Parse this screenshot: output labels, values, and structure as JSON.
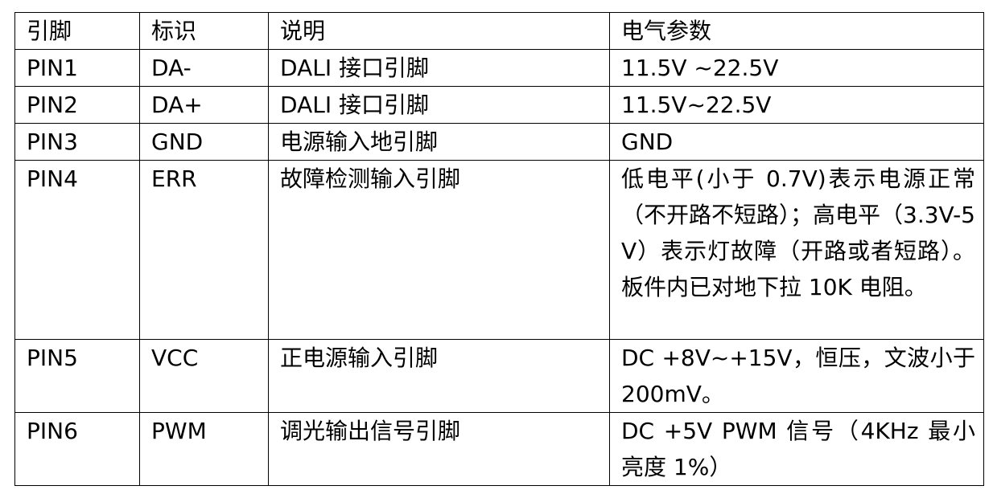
{
  "table": {
    "header": [
      "引脚",
      "标识",
      "说明",
      "电气参数"
    ],
    "rows": [
      [
        "PIN1",
        "DA-",
        "DALI 接口引脚",
        "11.5V ~22.5V"
      ],
      [
        "PIN2",
        "DA+",
        "DALI 接口引脚",
        "11.5V~22.5V"
      ],
      [
        "PIN3",
        "GND",
        "电源输入地引脚",
        "GND"
      ],
      [
        "PIN4",
        "ERR",
        "故障检测输入引脚",
        "低电平(小于 0.7V)表示电源正常（不开路不短路）；高电平（3.3V-5V）表示灯故障（开路或者短路）。板件内已对地下拉 10K 电阻。"
      ],
      [
        "PIN5",
        "VCC",
        "正电源输入引脚",
        "DC +8V~+15V，恒压，文波小于 200mV。"
      ],
      [
        "PIN6",
        "PWM",
        "调光输出信号引脚",
        "DC +5V PWM 信号（4KHz 最小亮度 1%）"
      ]
    ]
  }
}
